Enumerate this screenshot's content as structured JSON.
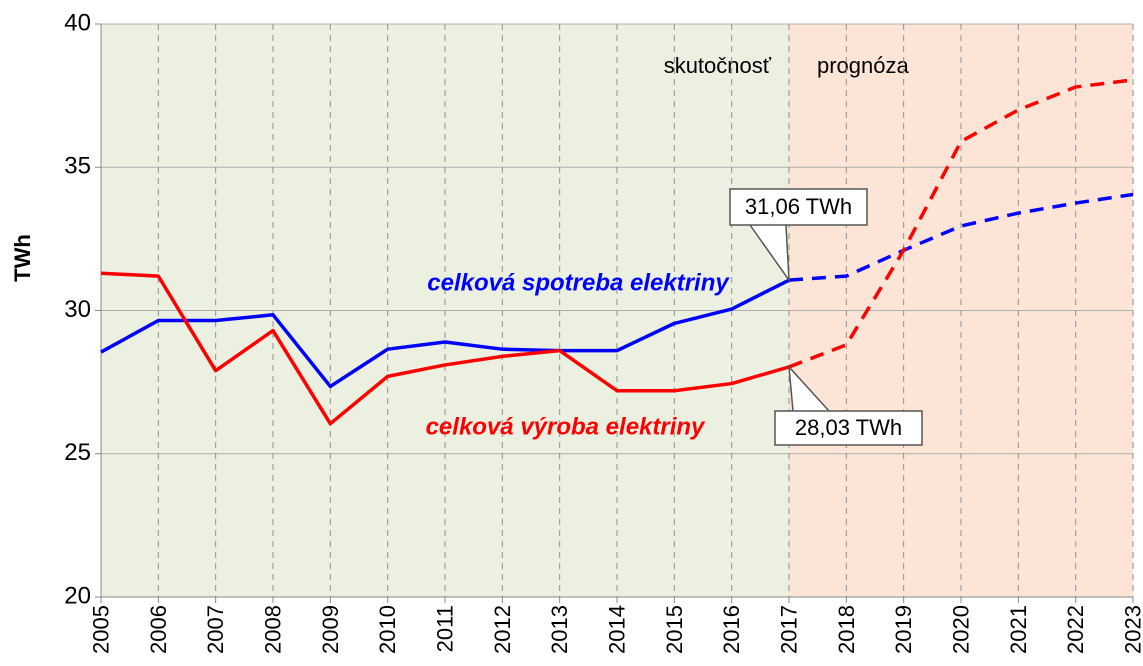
{
  "chart_data": {
    "type": "line",
    "y_label": "TWh",
    "x": [
      2005,
      2006,
      2007,
      2008,
      2009,
      2010,
      2011,
      2012,
      2013,
      2014,
      2015,
      2016,
      2017,
      2018,
      2019,
      2020,
      2021,
      2022,
      2023
    ],
    "xlim": [
      2005,
      2023
    ],
    "xticks": [
      2005,
      2006,
      2007,
      2008,
      2009,
      2010,
      2011,
      2012,
      2013,
      2014,
      2015,
      2016,
      2017,
      2018,
      2019,
      2020,
      2021,
      2022,
      2023
    ],
    "ylim": [
      20,
      40
    ],
    "yticks": [
      20,
      25,
      30,
      35,
      40
    ],
    "grid": true,
    "regions": [
      {
        "label": "skutočnosť",
        "from": 2005,
        "to": 2017,
        "color": "#ebf0e0"
      },
      {
        "label": "prognóza",
        "from": 2017,
        "to": 2023,
        "color": "#fce4d6",
        "dashed": true
      }
    ],
    "series": [
      {
        "name": "celková spotreba elektriny",
        "color": "#0000ff",
        "values": [
          28.55,
          29.65,
          29.65,
          29.85,
          27.35,
          28.65,
          28.9,
          28.65,
          28.6,
          28.6,
          29.55,
          30.05,
          31.06,
          31.2,
          32.1,
          32.95,
          33.4,
          33.75,
          34.05
        ],
        "value_labels": [
          null,
          null,
          null,
          null,
          null,
          null,
          null,
          null,
          null,
          null,
          null,
          null,
          "31,06 TWh",
          null,
          null,
          null,
          null,
          null,
          null
        ]
      },
      {
        "name": "celková výroba elektriny",
        "color": "#ff0000",
        "values": [
          31.3,
          31.2,
          27.9,
          29.3,
          26.05,
          27.7,
          28.1,
          28.4,
          28.6,
          27.2,
          27.2,
          27.45,
          28.03,
          28.8,
          32.1,
          35.9,
          37.0,
          37.8,
          38.05
        ],
        "value_labels": [
          null,
          null,
          null,
          null,
          null,
          null,
          null,
          null,
          null,
          null,
          null,
          null,
          "28,03 TWh",
          null,
          null,
          null,
          null,
          null,
          null
        ]
      }
    ]
  }
}
